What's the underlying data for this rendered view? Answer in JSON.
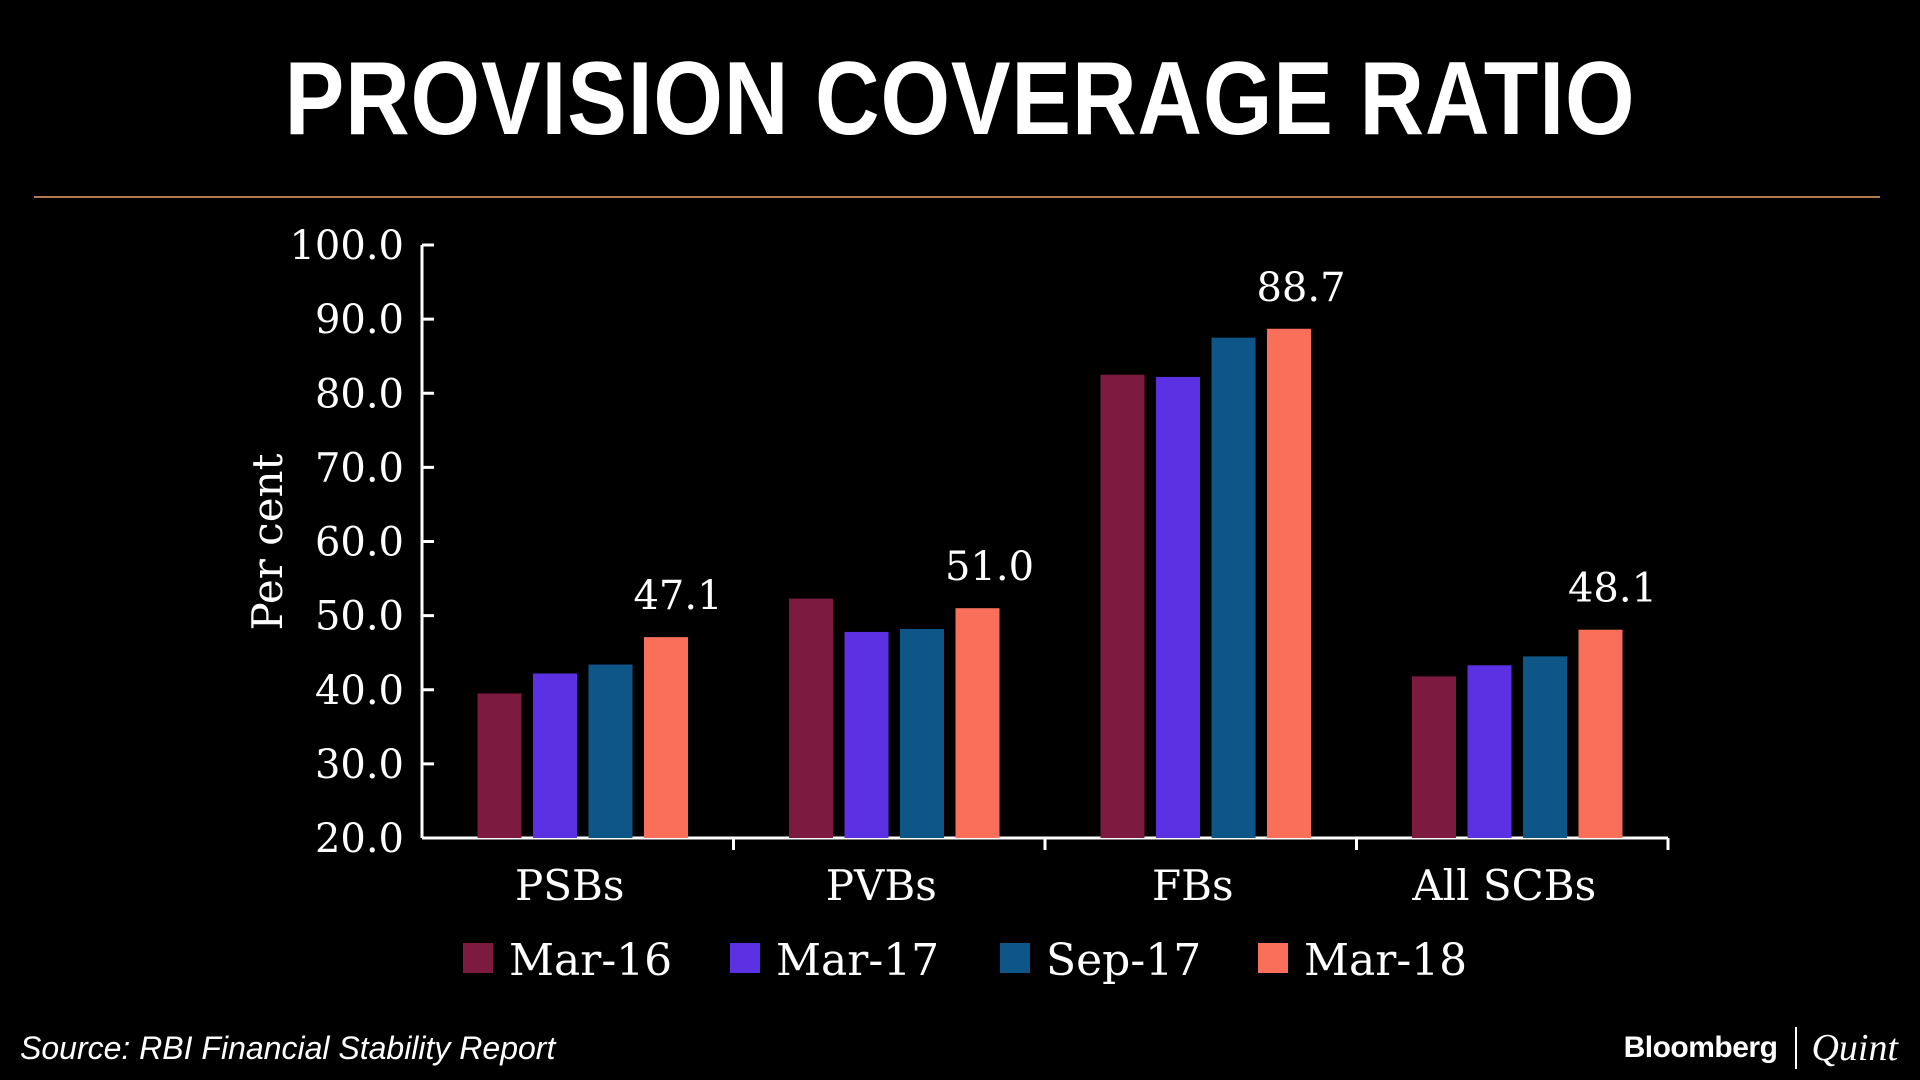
{
  "title": "PROVISION COVERAGE RATIO",
  "source": "Source: RBI Financial Stability Report",
  "brand": {
    "bloomberg": "Bloomberg",
    "quint": "Quint"
  },
  "colors": {
    "background": "#000000",
    "divider": "#b07a4a",
    "Mar-16": "#7d1a40",
    "Mar-17": "#5c30e3",
    "Sep-17": "#0d5687",
    "Mar-18": "#fa6f5a"
  },
  "chart_data": {
    "type": "bar",
    "title": "PROVISION COVERAGE RATIO",
    "xlabel": "",
    "ylabel": "Per cent",
    "ylim": [
      20.0,
      100.0
    ],
    "yticks": [
      "100.0",
      "90.0",
      "80.0",
      "70.0",
      "60.0",
      "50.0",
      "40.0",
      "30.0",
      "20.0"
    ],
    "grid": false,
    "legend_position": "bottom",
    "categories": [
      "PSBs",
      "PVBs",
      "FBs",
      "All SCBs"
    ],
    "series": [
      {
        "name": "Mar-16",
        "color": "#7d1a40",
        "values": [
          39.5,
          52.3,
          82.5,
          41.8
        ]
      },
      {
        "name": "Mar-17",
        "color": "#5c30e3",
        "values": [
          42.2,
          47.8,
          82.2,
          43.3
        ]
      },
      {
        "name": "Sep-17",
        "color": "#0d5687",
        "values": [
          43.4,
          48.2,
          87.5,
          44.5
        ]
      },
      {
        "name": "Mar-18",
        "color": "#fa6f5a",
        "values": [
          47.1,
          51.0,
          88.7,
          48.1
        ]
      }
    ],
    "data_labels": [
      {
        "series": "Mar-18",
        "category": "PSBs",
        "text": "47.1"
      },
      {
        "series": "Mar-18",
        "category": "PVBs",
        "text": "51.0"
      },
      {
        "series": "Mar-18",
        "category": "FBs",
        "text": "88.7"
      },
      {
        "series": "Mar-18",
        "category": "All SCBs",
        "text": "48.1"
      }
    ]
  }
}
